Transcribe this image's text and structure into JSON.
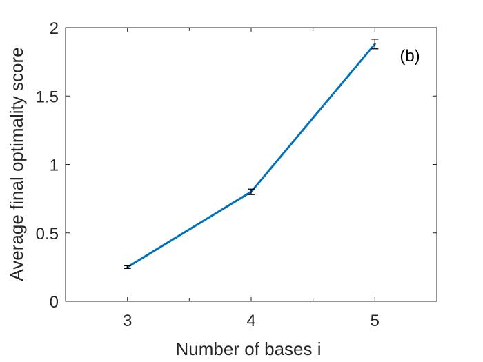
{
  "chart_data": {
    "type": "line",
    "annotation": "(b)",
    "xlabel": "Number of bases i",
    "ylabel": "Average final optimality score",
    "xlim": [
      2.5,
      5.5
    ],
    "ylim": [
      0,
      2
    ],
    "x_ticks": [
      3,
      4,
      5
    ],
    "x_tick_labels": [
      "3",
      "4",
      "5"
    ],
    "y_ticks": [
      0,
      0.5,
      1,
      1.5,
      2
    ],
    "y_tick_labels": [
      "0",
      "0.5",
      "1",
      "1.5",
      "2"
    ],
    "grid": false,
    "series": [
      {
        "x": [
          3,
          4,
          5
        ],
        "values": [
          0.25,
          0.8,
          1.88
        ],
        "error": [
          0.01,
          0.02,
          0.035
        ],
        "color": "#0072BD"
      }
    ],
    "axis_color": "#262626",
    "errorbar_color": "#000000"
  }
}
